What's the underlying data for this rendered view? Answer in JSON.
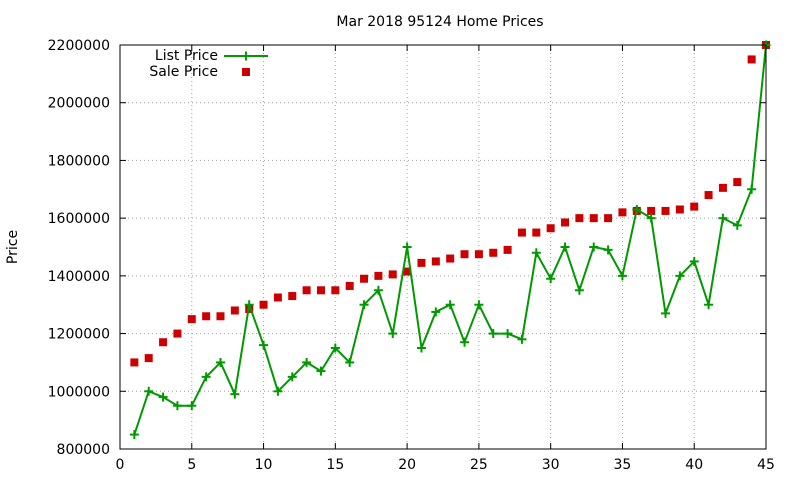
{
  "chart_data": {
    "type": "scatter",
    "title": "Mar 2018 95124 Home Prices",
    "xlabel": "",
    "ylabel": "Price",
    "xlim": [
      0,
      45
    ],
    "ylim": [
      800000,
      2200000
    ],
    "xticks": [
      0,
      5,
      10,
      15,
      20,
      25,
      30,
      35,
      40,
      45
    ],
    "yticks": [
      800000,
      1000000,
      1200000,
      1400000,
      1600000,
      1800000,
      2000000,
      2200000
    ],
    "grid": true,
    "legend_position": "top-left",
    "x": [
      1,
      2,
      3,
      4,
      5,
      6,
      7,
      8,
      9,
      10,
      11,
      12,
      13,
      14,
      15,
      16,
      17,
      18,
      19,
      20,
      21,
      22,
      23,
      24,
      25,
      26,
      27,
      28,
      29,
      30,
      31,
      32,
      33,
      34,
      35,
      36,
      37,
      38,
      39,
      40,
      41,
      42,
      43,
      44,
      45
    ],
    "series": [
      {
        "name": "List Price",
        "style": "line-with-plus-markers",
        "color": "#009900",
        "values": [
          850000,
          1000000,
          980000,
          950000,
          950000,
          1050000,
          1100000,
          990000,
          1300000,
          1160000,
          1000000,
          1050000,
          1100000,
          1070000,
          1150000,
          1100000,
          1300000,
          1350000,
          1200000,
          1500000,
          1150000,
          1275000,
          1300000,
          1170000,
          1300000,
          1200000,
          1200000,
          1180000,
          1480000,
          1390000,
          1500000,
          1350000,
          1500000,
          1490000,
          1400000,
          1630000,
          1600000,
          1270000,
          1400000,
          1450000,
          1300000,
          1600000,
          1575000,
          1700000,
          2200000
        ]
      },
      {
        "name": "Sale Price",
        "style": "square-markers",
        "color": "#cc0000",
        "values": [
          1100000,
          1115000,
          1170000,
          1200000,
          1250000,
          1260000,
          1260000,
          1280000,
          1285000,
          1300000,
          1325000,
          1330000,
          1350000,
          1350000,
          1350000,
          1365000,
          1390000,
          1400000,
          1405000,
          1415000,
          1445000,
          1450000,
          1460000,
          1475000,
          1475000,
          1480000,
          1490000,
          1550000,
          1550000,
          1565000,
          1585000,
          1600000,
          1600000,
          1600000,
          1620000,
          1625000,
          1625000,
          1625000,
          1630000,
          1640000,
          1680000,
          1705000,
          1725000,
          2150000,
          2200000
        ]
      }
    ]
  }
}
